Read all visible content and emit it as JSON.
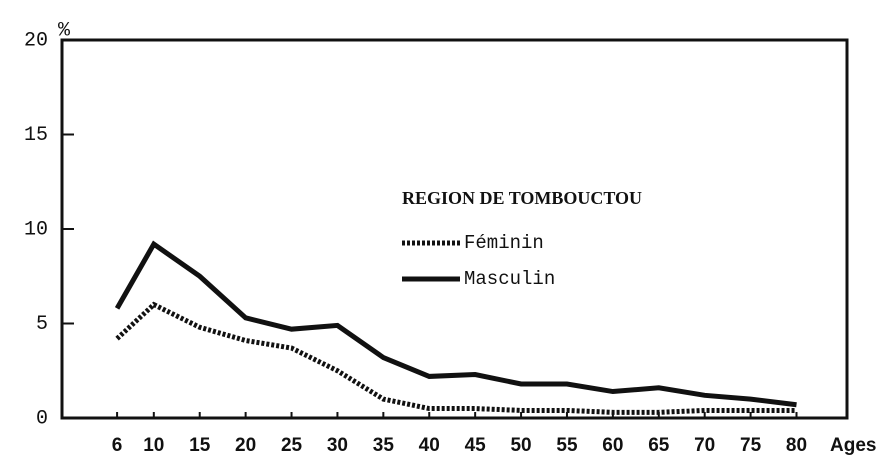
{
  "chart_data": {
    "type": "line",
    "y_unit": "%",
    "x_label": "Ages",
    "legend_title": "REGION DE TOMBOUCTOU",
    "x": [
      6,
      10,
      15,
      20,
      25,
      30,
      35,
      40,
      45,
      50,
      55,
      60,
      65,
      70,
      75,
      80
    ],
    "series": [
      {
        "name": "Féminin",
        "color": "#111111",
        "dashed": true,
        "values": [
          4.2,
          6.0,
          4.8,
          4.1,
          3.7,
          2.5,
          1.0,
          0.5,
          0.5,
          0.4,
          0.4,
          0.3,
          0.3,
          0.4,
          0.4,
          0.4
        ]
      },
      {
        "name": "Masculin",
        "color": "#111111",
        "dashed": false,
        "values": [
          5.8,
          9.2,
          7.5,
          5.3,
          4.7,
          4.9,
          3.2,
          2.2,
          2.3,
          1.8,
          1.8,
          1.4,
          1.6,
          1.2,
          1.0,
          0.7
        ]
      }
    ],
    "xlim": [
      0,
      85.5
    ],
    "xticks": [
      6,
      10,
      15,
      20,
      25,
      30,
      35,
      40,
      45,
      50,
      55,
      60,
      65,
      70,
      75,
      80
    ],
    "ylim": [
      0,
      20
    ],
    "yticks": [
      0,
      5,
      10,
      15,
      20
    ],
    "grid": false
  }
}
